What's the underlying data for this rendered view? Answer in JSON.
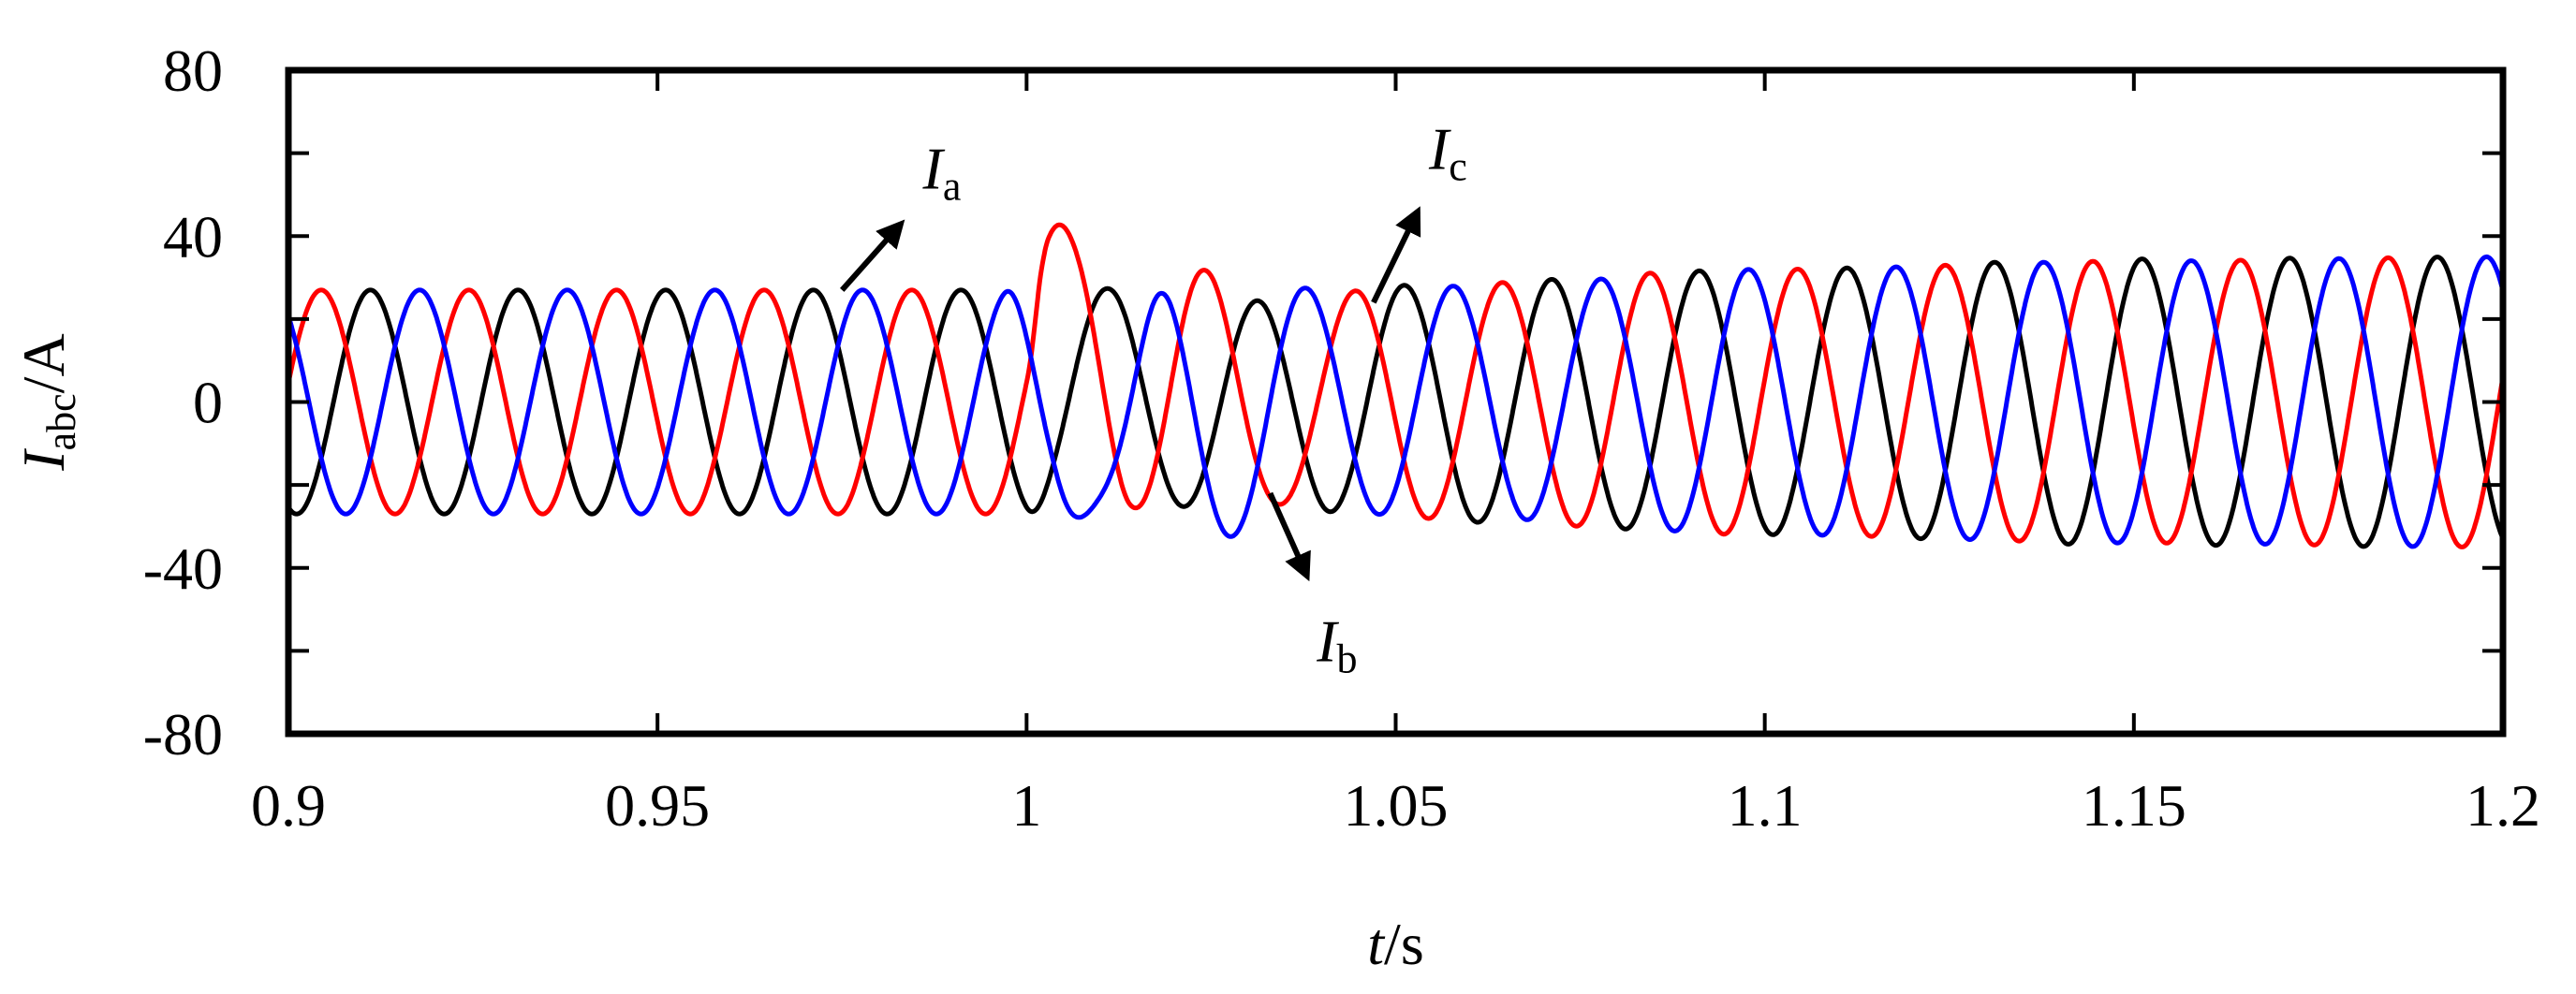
{
  "chart_data": {
    "type": "line",
    "xlabel": {
      "italic": "t",
      "unit": "/s"
    },
    "ylabel": {
      "main": "I",
      "sub": "abc",
      "unit": "/A"
    },
    "xlim": [
      0.9,
      1.2
    ],
    "ylim": [
      -80,
      80
    ],
    "x_ticks": [
      0.9,
      0.95,
      1.0,
      1.05,
      1.1,
      1.15,
      1.2
    ],
    "x_tick_labels": [
      "0.9",
      "0.95",
      "1",
      "1.05",
      "1.1",
      "1.15",
      "1.2"
    ],
    "y_ticks": [
      80,
      40,
      0,
      -40,
      -80
    ],
    "y_tick_labels": [
      "80",
      "40",
      "0",
      "-40",
      "-80"
    ],
    "grid": false,
    "frequency_hz": 50,
    "disturbance_time": 1.0,
    "series": [
      {
        "color": "#000000",
        "phase_deg": -110,
        "amplitude_points": [
          [
            0.9,
            27
          ],
          [
            1.0,
            27
          ],
          [
            1.02,
            24
          ],
          [
            1.035,
            26
          ],
          [
            1.06,
            29
          ],
          [
            1.1,
            32
          ],
          [
            1.15,
            34.5
          ],
          [
            1.2,
            35
          ]
        ],
        "transient_points": [
          [
            1.0,
            0
          ],
          [
            1.004,
            4
          ],
          [
            1.012,
            2
          ],
          [
            1.025,
            -2
          ],
          [
            1.04,
            0
          ]
        ]
      },
      {
        "color": "#ff0000",
        "phase_deg": 10,
        "amplitude_points": [
          [
            0.9,
            27
          ],
          [
            1.0,
            27
          ],
          [
            1.002,
            38
          ],
          [
            1.008,
            30
          ],
          [
            1.02,
            36
          ],
          [
            1.035,
            24
          ],
          [
            1.05,
            28
          ],
          [
            1.1,
            32
          ],
          [
            1.15,
            34
          ],
          [
            1.2,
            35
          ]
        ],
        "transient_points": [
          [
            1.0,
            0
          ],
          [
            1.003,
            6
          ],
          [
            1.008,
            14
          ],
          [
            1.014,
            8
          ],
          [
            1.025,
            -2
          ],
          [
            1.04,
            0
          ]
        ]
      },
      {
        "color": "#0000ff",
        "phase_deg": 130,
        "amplitude_points": [
          [
            0.9,
            27
          ],
          [
            0.997,
            27
          ],
          [
            1.003,
            24
          ],
          [
            1.01,
            14
          ],
          [
            1.02,
            32
          ],
          [
            1.03,
            30
          ],
          [
            1.045,
            27
          ],
          [
            1.06,
            28
          ],
          [
            1.1,
            32
          ],
          [
            1.15,
            34
          ],
          [
            1.2,
            35
          ]
        ],
        "transient_points": [
          [
            0.997,
            0
          ],
          [
            1.003,
            -8
          ],
          [
            1.01,
            -12
          ],
          [
            1.018,
            -4
          ],
          [
            1.03,
            -2
          ],
          [
            1.045,
            0
          ]
        ]
      }
    ],
    "annotations": [
      {
        "main": "I",
        "sub": "a",
        "from": [
          0.975,
          27
        ],
        "to": [
          0.983,
          43
        ]
      },
      {
        "main": "I",
        "sub": "b",
        "from": [
          1.033,
          -22
        ],
        "to": [
          1.038,
          -42
        ]
      },
      {
        "main": "I",
        "sub": "c",
        "from": [
          1.047,
          24
        ],
        "to": [
          1.053,
          46
        ]
      }
    ]
  }
}
